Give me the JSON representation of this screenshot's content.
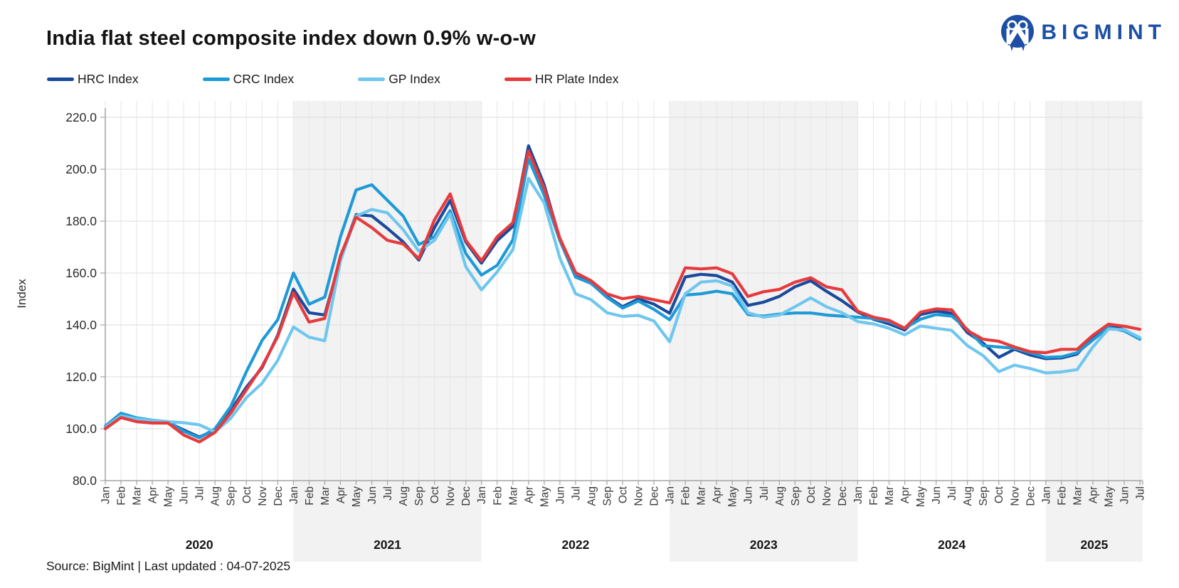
{
  "header": {
    "title": "India flat steel composite index down 0.9% w-o-w",
    "brand": "BIGMINT"
  },
  "footer": {
    "source": "Source: BigMint | Last updated : 04-07-2025"
  },
  "icons": {
    "logo_mark": "bigmint-circle-m-icon"
  },
  "colors": {
    "brand_blue": "#1d4fa5",
    "band_gray": "#f2f2f2",
    "h_grid": "#dcdcdc",
    "v_grid": "#e6e6e6",
    "axis": "#a3a3a3",
    "tick_label": "#2b2b2b",
    "month_label": "#3a3a3a",
    "year_label": "#141414"
  },
  "chart_data": {
    "type": "line",
    "title": "India flat steel composite index down 0.9% w-o-w",
    "xlabel": "",
    "ylabel": "Index",
    "ylim": [
      80,
      220
    ],
    "ytick_step": 20,
    "ytick_decimals": 1,
    "grid": true,
    "legend_position": "top-left",
    "shaded_year_band_color": "#f2f2f2",
    "years": [
      {
        "label": "2020",
        "shaded": false,
        "months": [
          "Jan",
          "Feb",
          "Mar",
          "Apr",
          "May",
          "Jun",
          "Jul",
          "Aug",
          "Sep",
          "Oct",
          "Nov",
          "Dec"
        ]
      },
      {
        "label": "2021",
        "shaded": true,
        "months": [
          "Jan",
          "Feb",
          "Mar",
          "Apr",
          "May",
          "Jun",
          "Jul",
          "Aug",
          "Sep",
          "Oct",
          "Nov",
          "Dec"
        ]
      },
      {
        "label": "2022",
        "shaded": false,
        "months": [
          "Jan",
          "Feb",
          "Mar",
          "Apr",
          "May",
          "Jun",
          "Jul",
          "Aug",
          "Sep",
          "Oct",
          "Nov",
          "Dec"
        ]
      },
      {
        "label": "2023",
        "shaded": true,
        "months": [
          "Jan",
          "Feb",
          "Mar",
          "Apr",
          "May",
          "Jun",
          "Jul",
          "Aug",
          "Sep",
          "Oct",
          "Nov",
          "Dec"
        ]
      },
      {
        "label": "2024",
        "shaded": false,
        "months": [
          "Jan",
          "Feb",
          "Mar",
          "Apr",
          "May",
          "Jun",
          "Jul",
          "Aug",
          "Sep",
          "Oct",
          "Nov",
          "Dec"
        ]
      },
      {
        "label": "2025",
        "shaded": true,
        "months": [
          "Jan",
          "Feb",
          "Mar",
          "Apr",
          "May",
          "Jun",
          "Jul"
        ]
      }
    ],
    "series": [
      {
        "name": "HRC Index",
        "color": "#1a4a9c",
        "values": [
          100.5,
          105.3,
          103.8,
          103.0,
          102.5,
          99.5,
          96.8,
          99.5,
          107.0,
          116.0,
          123.5,
          136.0,
          153.8,
          144.7,
          143.8,
          165.5,
          182.5,
          182.0,
          177.2,
          172.0,
          165.0,
          177.5,
          188.0,
          172.0,
          163.8,
          172.5,
          178.0,
          209.0,
          194.0,
          173.0,
          158.8,
          156.0,
          151.0,
          147.0,
          150.0,
          148.0,
          144.5,
          158.5,
          159.5,
          159.0,
          156.5,
          147.5,
          148.8,
          151.0,
          154.7,
          157.0,
          153.0,
          149.3,
          145.0,
          142.2,
          140.4,
          138.0,
          144.0,
          145.3,
          144.5,
          137.0,
          133.0,
          127.5,
          130.6,
          128.4,
          127.0,
          127.3,
          128.8,
          135.5,
          140.0,
          138.2,
          134.8
        ]
      },
      {
        "name": "CRC Index",
        "color": "#1e9ad6",
        "values": [
          101.0,
          106.0,
          104.2,
          103.3,
          102.7,
          99.0,
          96.5,
          100.0,
          108.5,
          122.0,
          134.0,
          142.0,
          160.0,
          148.0,
          150.7,
          174.0,
          192.0,
          194.0,
          188.0,
          182.0,
          171.0,
          174.0,
          184.0,
          167.5,
          159.2,
          163.0,
          172.8,
          204.0,
          190.0,
          172.5,
          158.4,
          156.0,
          150.6,
          146.5,
          149.2,
          146.0,
          142.0,
          151.5,
          152.0,
          153.0,
          152.0,
          144.0,
          143.4,
          144.2,
          144.6,
          144.6,
          143.8,
          143.4,
          143.0,
          142.5,
          141.3,
          138.7,
          142.2,
          144.0,
          143.4,
          138.3,
          132.0,
          131.5,
          131.0,
          129.3,
          127.5,
          127.7,
          129.3,
          134.2,
          139.0,
          137.7,
          134.5
        ]
      },
      {
        "name": "GP Index",
        "color": "#6fc6ee",
        "values": [
          100.5,
          105.0,
          103.8,
          103.2,
          102.7,
          102.3,
          101.5,
          98.8,
          104.0,
          112.0,
          117.5,
          126.3,
          139.2,
          135.3,
          133.9,
          164.7,
          182.0,
          184.5,
          183.2,
          176.7,
          168.4,
          172.6,
          182.8,
          162.4,
          153.5,
          160.5,
          169.0,
          196.5,
          187.0,
          165.7,
          152.0,
          149.7,
          144.7,
          143.3,
          143.7,
          141.5,
          133.5,
          152.0,
          156.5,
          157.0,
          155.0,
          144.7,
          143.0,
          143.8,
          147.0,
          150.4,
          147.0,
          144.7,
          141.3,
          140.4,
          138.7,
          136.2,
          139.6,
          138.7,
          137.9,
          132.0,
          128.2,
          122.0,
          124.5,
          123.2,
          121.5,
          121.9,
          122.8,
          131.5,
          138.4,
          138.2,
          135.1
        ]
      },
      {
        "name": "HR Plate Index",
        "color": "#e73a3c",
        "values": [
          100.0,
          104.3,
          102.7,
          102.2,
          102.2,
          97.6,
          94.9,
          98.6,
          106.0,
          115.0,
          124.0,
          135.5,
          152.4,
          141.1,
          142.5,
          166.6,
          181.5,
          177.5,
          172.6,
          171.2,
          165.6,
          180.5,
          190.5,
          172.6,
          164.7,
          174.0,
          179.4,
          207.0,
          192.6,
          173.4,
          160.2,
          157.0,
          152.0,
          150.1,
          151.0,
          149.7,
          148.5,
          162.0,
          161.6,
          162.0,
          159.7,
          151.0,
          152.8,
          153.7,
          156.5,
          158.2,
          154.7,
          153.5,
          145.3,
          143.0,
          141.8,
          138.7,
          144.9,
          146.2,
          145.8,
          137.8,
          134.5,
          133.7,
          131.5,
          129.7,
          129.3,
          130.6,
          130.6,
          136.0,
          140.3,
          139.5,
          138.3
        ]
      }
    ]
  }
}
